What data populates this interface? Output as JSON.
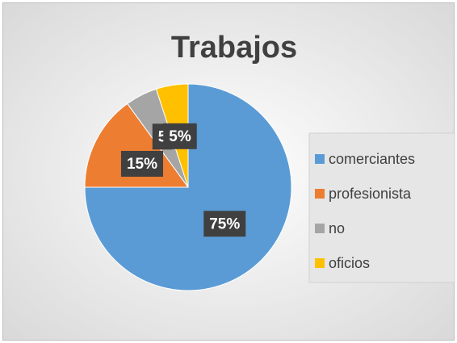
{
  "chart_data": {
    "type": "pie",
    "title": "Trabajos",
    "categories": [
      "comerciantes",
      "profesionista",
      "no",
      "oficios"
    ],
    "values": [
      75,
      15,
      5,
      5
    ],
    "value_labels": [
      "75%",
      "15%",
      "5",
      "5%"
    ],
    "colors": [
      "#5b9bd5",
      "#ed7d31",
      "#a5a5a5",
      "#ffc000"
    ],
    "legend": "right"
  }
}
